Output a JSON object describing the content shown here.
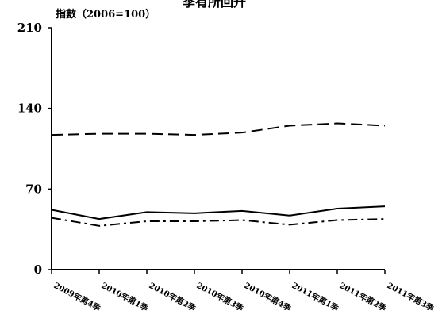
{
  "chart_data": {
    "type": "line",
    "title": "",
    "top_title_fragment": "季有所回升",
    "y_unit_label": "指數（2006=100）",
    "xlabel": "",
    "ylabel": "",
    "categories": [
      "2009年第4季",
      "2010年第1季",
      "2010年第2季",
      "2010年第3季",
      "2010年第4季",
      "2011年第1季",
      "2011年第2季",
      "2011年第3季"
    ],
    "ylim": [
      0,
      210
    ],
    "yticks": [
      0,
      70,
      140,
      210
    ],
    "grid": false,
    "legend": "none",
    "series": [
      {
        "style": "dashed",
        "color": "#000000",
        "values": [
          117,
          118,
          118,
          117,
          119,
          125,
          127,
          125
        ]
      },
      {
        "style": "solid",
        "color": "#000000",
        "values": [
          52,
          44,
          50,
          49,
          51,
          47,
          53,
          55
        ]
      },
      {
        "style": "dash-dot",
        "color": "#000000",
        "values": [
          45,
          38,
          42,
          42,
          43,
          39,
          43,
          44
        ]
      }
    ]
  }
}
